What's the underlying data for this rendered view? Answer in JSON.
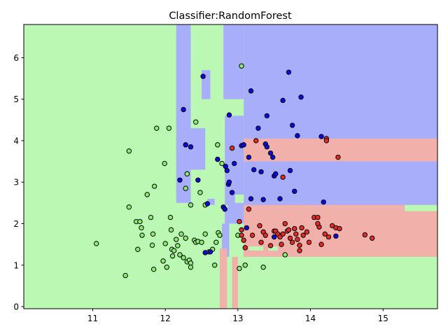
{
  "chart_data": {
    "type": "scatter",
    "title": "Classifier:RandomForest",
    "xlabel": "",
    "ylabel": "",
    "xlim": [
      10.05,
      15.75
    ],
    "ylim": [
      -0.05,
      6.8
    ],
    "xticks": [
      11,
      12,
      13,
      14,
      15
    ],
    "yticks": [
      0,
      1,
      2,
      3,
      4,
      5,
      6
    ],
    "grid": false,
    "colors": {
      "region_green": "#bbf8b3",
      "region_blue": "#a9aefb",
      "region_red": "#f2b0ab",
      "point_green": "#87f06b",
      "point_blue": "#0a0ae6",
      "point_red": "#ea2a22",
      "point_edge": "#000000"
    },
    "regions": [
      {
        "class": "blue",
        "x": [
          13.08,
          15.75
        ],
        "y": [
          1.2,
          6.8
        ]
      },
      {
        "class": "blue",
        "x": [
          12.15,
          12.35
        ],
        "y": [
          2.5,
          6.8
        ]
      },
      {
        "class": "blue",
        "x": [
          12.35,
          12.55
        ],
        "y": [
          3.3,
          4.3
        ]
      },
      {
        "class": "blue",
        "x": [
          12.5,
          12.62
        ],
        "y": [
          5.0,
          5.7
        ]
      },
      {
        "class": "blue",
        "x": [
          12.58,
          12.68
        ],
        "y": [
          2.45,
          2.6
        ]
      },
      {
        "class": "blue",
        "x": [
          12.8,
          13.08
        ],
        "y": [
          5.0,
          6.8
        ]
      },
      {
        "class": "blue",
        "x": [
          12.82,
          13.08
        ],
        "y": [
          2.0,
          4.6
        ]
      },
      {
        "class": "blue",
        "x": [
          12.78,
          12.88
        ],
        "y": [
          1.2,
          2.0
        ]
      },
      {
        "class": "red",
        "x": [
          13.08,
          15.75
        ],
        "y": [
          1.2,
          2.45
        ]
      },
      {
        "class": "red",
        "x": [
          13.08,
          15.75
        ],
        "y": [
          3.5,
          4.05
        ]
      },
      {
        "class": "red",
        "x": [
          12.75,
          12.85
        ],
        "y": [
          -0.05,
          1.4
        ]
      },
      {
        "class": "red",
        "x": [
          12.92,
          13.0
        ],
        "y": [
          -0.05,
          1.2
        ]
      },
      {
        "class": "green",
        "x": [
          13.08,
          15.75
        ],
        "y": [
          -0.05,
          1.2
        ]
      },
      {
        "class": "green",
        "x": [
          12.95,
          13.08
        ],
        "y": [
          1.45,
          2.0
        ]
      },
      {
        "class": "green",
        "x": [
          13.15,
          13.35
        ],
        "y": [
          1.35,
          1.45
        ]
      },
      {
        "class": "green",
        "x": [
          13.42,
          13.55
        ],
        "y": [
          1.35,
          1.45
        ]
      },
      {
        "class": "green",
        "x": [
          15.3,
          15.75
        ],
        "y": [
          2.3,
          2.45
        ]
      },
      {
        "class": "green",
        "x": [
          12.96,
          13.08
        ],
        "y": [
          2.5,
          2.7
        ]
      },
      {
        "class": "green",
        "x": [
          12.78,
          12.86
        ],
        "y": [
          2.35,
          2.45
        ]
      }
    ],
    "series": [
      {
        "class": "green",
        "points": [
          [
            11.05,
            1.52
          ],
          [
            11.45,
            0.75
          ],
          [
            11.5,
            2.4
          ],
          [
            11.5,
            3.75
          ],
          [
            11.6,
            2.05
          ],
          [
            11.62,
            1.38
          ],
          [
            11.65,
            2.05
          ],
          [
            11.67,
            1.9
          ],
          [
            11.68,
            1.72
          ],
          [
            11.75,
            2.7
          ],
          [
            11.8,
            2.15
          ],
          [
            11.82,
            1.48
          ],
          [
            11.83,
            1.75
          ],
          [
            11.84,
            0.9
          ],
          [
            11.85,
            2.9
          ],
          [
            11.88,
            4.3
          ],
          [
            11.97,
            1.1
          ],
          [
            11.99,
            3.45
          ],
          [
            12.0,
            1.52
          ],
          [
            12.02,
            0.95
          ],
          [
            12.05,
            4.3
          ],
          [
            12.07,
            2.15
          ],
          [
            12.08,
            1.85
          ],
          [
            12.09,
            1.38
          ],
          [
            12.1,
            1.22
          ],
          [
            12.15,
            1.62
          ],
          [
            12.17,
            1.47
          ],
          [
            12.2,
            1.25
          ],
          [
            12.22,
            1.75
          ],
          [
            12.25,
            1.18
          ],
          [
            12.28,
            1.65
          ],
          [
            12.3,
            1.08
          ],
          [
            12.33,
            1.12
          ],
          [
            12.35,
            1.05
          ],
          [
            12.4,
            1.6
          ],
          [
            12.42,
            1.55
          ],
          [
            12.45,
            1.57
          ],
          [
            12.5,
            1.55
          ],
          [
            12.55,
            1.75
          ],
          [
            12.6,
            1.32
          ],
          [
            12.65,
            1.38
          ],
          [
            12.7,
            1.55
          ],
          [
            12.73,
            1.78
          ],
          [
            12.75,
            1.72
          ],
          [
            12.28,
            2.85
          ],
          [
            12.3,
            3.2
          ],
          [
            12.35,
            2.45
          ],
          [
            12.42,
            4.45
          ],
          [
            12.48,
            2.75
          ],
          [
            12.55,
            2.45
          ],
          [
            12.72,
            3.9
          ],
          [
            12.78,
            3.45
          ],
          [
            12.68,
            1.0
          ],
          [
            13.0,
            1.72
          ],
          [
            13.02,
            0.92
          ],
          [
            13.05,
            5.8
          ],
          [
            13.1,
            1.0
          ],
          [
            13.35,
            0.95
          ],
          [
            13.65,
            1.25
          ],
          [
            12.35,
            0.95
          ],
          [
            12.12,
            1.35
          ]
        ]
      },
      {
        "class": "blue",
        "points": [
          [
            12.2,
            3.05
          ],
          [
            12.25,
            4.75
          ],
          [
            12.28,
            3.9
          ],
          [
            12.35,
            3.85
          ],
          [
            12.45,
            3.05
          ],
          [
            12.52,
            5.55
          ],
          [
            12.55,
            1.3
          ],
          [
            12.58,
            2.48
          ],
          [
            12.62,
            1.32
          ],
          [
            12.72,
            3.55
          ],
          [
            12.8,
            2.4
          ],
          [
            12.82,
            2.35
          ],
          [
            12.83,
            3.38
          ],
          [
            12.85,
            3.28
          ],
          [
            12.87,
            2.95
          ],
          [
            12.88,
            3.0
          ],
          [
            12.88,
            4.62
          ],
          [
            12.92,
            2.75
          ],
          [
            12.95,
            3.45
          ],
          [
            13.05,
            3.88
          ],
          [
            13.08,
            3.9
          ],
          [
            13.12,
            1.9
          ],
          [
            13.15,
            3.6
          ],
          [
            13.18,
            5.2
          ],
          [
            13.18,
            2.6
          ],
          [
            13.22,
            3.3
          ],
          [
            13.28,
            4.3
          ],
          [
            13.32,
            3.25
          ],
          [
            13.35,
            2.58
          ],
          [
            13.38,
            3.92
          ],
          [
            13.4,
            4.6
          ],
          [
            13.4,
            3.85
          ],
          [
            13.45,
            3.7
          ],
          [
            13.48,
            3.6
          ],
          [
            13.5,
            3.15
          ],
          [
            13.52,
            3.2
          ],
          [
            13.58,
            2.6
          ],
          [
            13.62,
            4.97
          ],
          [
            13.7,
            5.65
          ],
          [
            13.72,
            3.28
          ],
          [
            13.75,
            4.37
          ],
          [
            13.78,
            2.78
          ],
          [
            13.82,
            4.12
          ],
          [
            13.87,
            5.05
          ],
          [
            14.15,
            4.1
          ],
          [
            14.18,
            2.52
          ],
          [
            14.35,
            1.7
          ],
          [
            13.5,
            1.68
          ]
        ]
      },
      {
        "class": "red",
        "points": [
          [
            12.92,
            3.82
          ],
          [
            13.02,
            2.05
          ],
          [
            13.05,
            1.85
          ],
          [
            13.05,
            1.72
          ],
          [
            13.08,
            1.6
          ],
          [
            13.1,
            1.42
          ],
          [
            13.15,
            2.35
          ],
          [
            13.2,
            1.72
          ],
          [
            13.25,
            4.0
          ],
          [
            13.3,
            1.95
          ],
          [
            13.32,
            1.55
          ],
          [
            13.35,
            1.8
          ],
          [
            13.38,
            1.72
          ],
          [
            13.45,
            1.47
          ],
          [
            13.5,
            1.82
          ],
          [
            13.52,
            1.82
          ],
          [
            13.55,
            1.75
          ],
          [
            13.58,
            1.68
          ],
          [
            13.62,
            1.75
          ],
          [
            13.62,
            3.12
          ],
          [
            13.65,
            2.0
          ],
          [
            13.68,
            1.82
          ],
          [
            13.7,
            1.85
          ],
          [
            13.72,
            1.65
          ],
          [
            13.75,
            1.55
          ],
          [
            13.78,
            1.88
          ],
          [
            13.8,
            1.75
          ],
          [
            13.82,
            1.62
          ],
          [
            13.85,
            1.35
          ],
          [
            13.88,
            1.9
          ],
          [
            13.9,
            1.72
          ],
          [
            13.95,
            1.8
          ],
          [
            13.98,
            1.55
          ],
          [
            14.05,
            2.15
          ],
          [
            14.1,
            2.15
          ],
          [
            14.12,
            1.92
          ],
          [
            14.15,
            1.5
          ],
          [
            14.22,
            4.05
          ],
          [
            14.2,
            1.75
          ],
          [
            14.25,
            1.68
          ],
          [
            14.3,
            1.95
          ],
          [
            14.35,
            1.9
          ],
          [
            14.38,
            3.6
          ],
          [
            14.4,
            1.88
          ],
          [
            14.22,
            4.0
          ],
          [
            14.75,
            1.73
          ],
          [
            14.85,
            1.65
          ],
          [
            14.1,
            2.0
          ],
          [
            13.6,
            1.5
          ],
          [
            13.85,
            1.48
          ]
        ]
      }
    ]
  }
}
